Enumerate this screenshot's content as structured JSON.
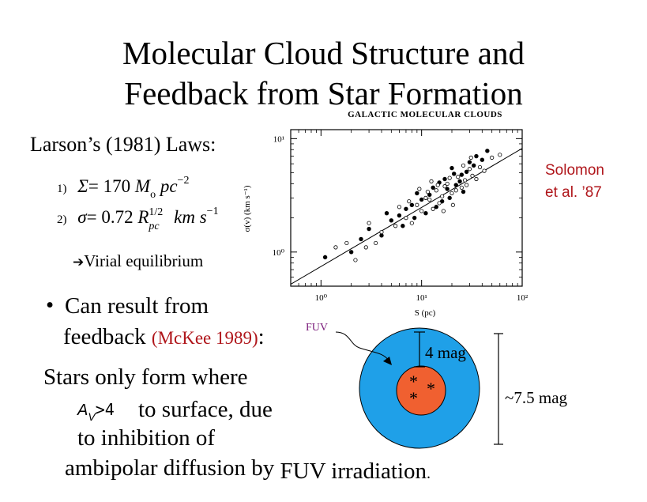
{
  "slide": {
    "title_line1": "Molecular Cloud Structure and",
    "title_line2": "Feedback from Star Formation",
    "laws_heading": "Larson’s (1981) Laws:",
    "law1_num": "1)",
    "law1_sigma": "Σ",
    "law1_rhs": "= 170",
    "law1_M": "M",
    "law1_o": "o",
    "law1_pc": "pc",
    "law1_exp": "−2",
    "law2_num": "2)",
    "law2_sigma": "σ",
    "law2_rhs": "= 0.72",
    "law2_R": "R",
    "law2_R_exp": "1/2",
    "law2_R_sub": "pc",
    "law2_km": "km",
    "law2_s": "s",
    "law2_s_exp": "−1",
    "virial_arrow": "➔",
    "virial_text": "Virial equilibrium",
    "citation_line1": "Solomon",
    "citation_line2": "et al. ’87",
    "bullet_symbol": "•",
    "bullet_line1": "Can result from",
    "bullet_line2": "feedback",
    "bullet_ref": "(McKee 1989)",
    "bullet_colon": ":",
    "stars_line1": "Stars only form where",
    "av_A": "A",
    "av_V": "V",
    "av_gt": ">4",
    "stars_line2": "to surface, due",
    "stars_line3": "to inhibition of",
    "stars_line4a": "ambipolar diffusion by",
    "stars_line4b": "FUV irradiation",
    "stars_line4c": "."
  },
  "diagram": {
    "fuv_label": "FUV",
    "mag4_label": "4 mag",
    "mag75_label": "~7.5 mag",
    "star_glyph": "*",
    "outer_color": "#1fa0e8",
    "inner_color": "#f06030"
  },
  "chart_data": {
    "type": "scatter",
    "title": "GALACTIC MOLECULAR CLOUDS",
    "xlabel": "S  (pc)",
    "ylabel": "σ(v)  (km s⁻¹)",
    "x_scale": "log",
    "y_scale": "log",
    "xlim": [
      0.5,
      100
    ],
    "ylim": [
      0.5,
      12
    ],
    "x_ticks": [
      "10⁰",
      "10¹",
      "10²"
    ],
    "y_ticks": [
      "10⁰",
      "10¹"
    ],
    "fit_line": {
      "x": [
        0.5,
        100
      ],
      "y": [
        0.52,
        8.2
      ]
    },
    "series": [
      {
        "marker": "filled",
        "points": [
          [
            12,
            3.2
          ],
          [
            15,
            4.1
          ],
          [
            20,
            5.5
          ],
          [
            25,
            4.8
          ],
          [
            8,
            2.6
          ],
          [
            10,
            2.9
          ],
          [
            18,
            3.6
          ],
          [
            30,
            6.2
          ],
          [
            22,
            3.9
          ],
          [
            6,
            2.1
          ],
          [
            14,
            2.5
          ],
          [
            9,
            3.3
          ],
          [
            28,
            5.1
          ],
          [
            35,
            7.0
          ],
          [
            5,
            1.9
          ],
          [
            17,
            4.4
          ],
          [
            11,
            2.2
          ],
          [
            40,
            6.5
          ],
          [
            7,
            2.4
          ],
          [
            13,
            3.7
          ],
          [
            2.5,
            1.3
          ],
          [
            3,
            1.6
          ],
          [
            19,
            3.0
          ],
          [
            24,
            4.2
          ],
          [
            16,
            2.8
          ],
          [
            33,
            5.8
          ],
          [
            4,
            1.4
          ],
          [
            8.5,
            2.0
          ],
          [
            26,
            3.4
          ],
          [
            45,
            7.8
          ],
          [
            2,
            1.0
          ],
          [
            6.5,
            1.7
          ],
          [
            21,
            4.9
          ],
          [
            1.1,
            0.9
          ],
          [
            4.5,
            2.2
          ]
        ]
      },
      {
        "marker": "open",
        "points": [
          [
            9,
            2.6
          ],
          [
            12,
            2.9
          ],
          [
            14,
            3.5
          ],
          [
            16,
            3.1
          ],
          [
            18,
            4.0
          ],
          [
            20,
            3.3
          ],
          [
            23,
            4.6
          ],
          [
            27,
            4.3
          ],
          [
            30,
            5.4
          ],
          [
            11,
            3.0
          ],
          [
            13,
            2.4
          ],
          [
            7,
            2.0
          ],
          [
            8,
            1.8
          ],
          [
            10,
            2.3
          ],
          [
            15,
            2.7
          ],
          [
            17,
            3.8
          ],
          [
            25,
            3.7
          ],
          [
            32,
            4.7
          ],
          [
            38,
            5.6
          ],
          [
            50,
            6.8
          ],
          [
            5.5,
            1.7
          ],
          [
            6,
            2.5
          ],
          [
            4,
            1.5
          ],
          [
            3.5,
            1.2
          ],
          [
            2.8,
            1.1
          ],
          [
            19,
            4.5
          ],
          [
            22,
            3.5
          ],
          [
            28,
            3.9
          ],
          [
            35,
            4.4
          ],
          [
            42,
            5.2
          ],
          [
            60,
            7.2
          ],
          [
            3,
            1.8
          ],
          [
            9.5,
            3.6
          ],
          [
            12.5,
            4.2
          ],
          [
            16.5,
            2.3
          ],
          [
            1.4,
            1.1
          ],
          [
            2.2,
            0.85
          ],
          [
            1.8,
            1.2
          ],
          [
            26,
            5.8
          ],
          [
            14.5,
            3.9
          ],
          [
            11.5,
            3.4
          ],
          [
            7.5,
            2.8
          ],
          [
            20.5,
            2.6
          ],
          [
            31,
            6.8
          ]
        ]
      }
    ]
  }
}
